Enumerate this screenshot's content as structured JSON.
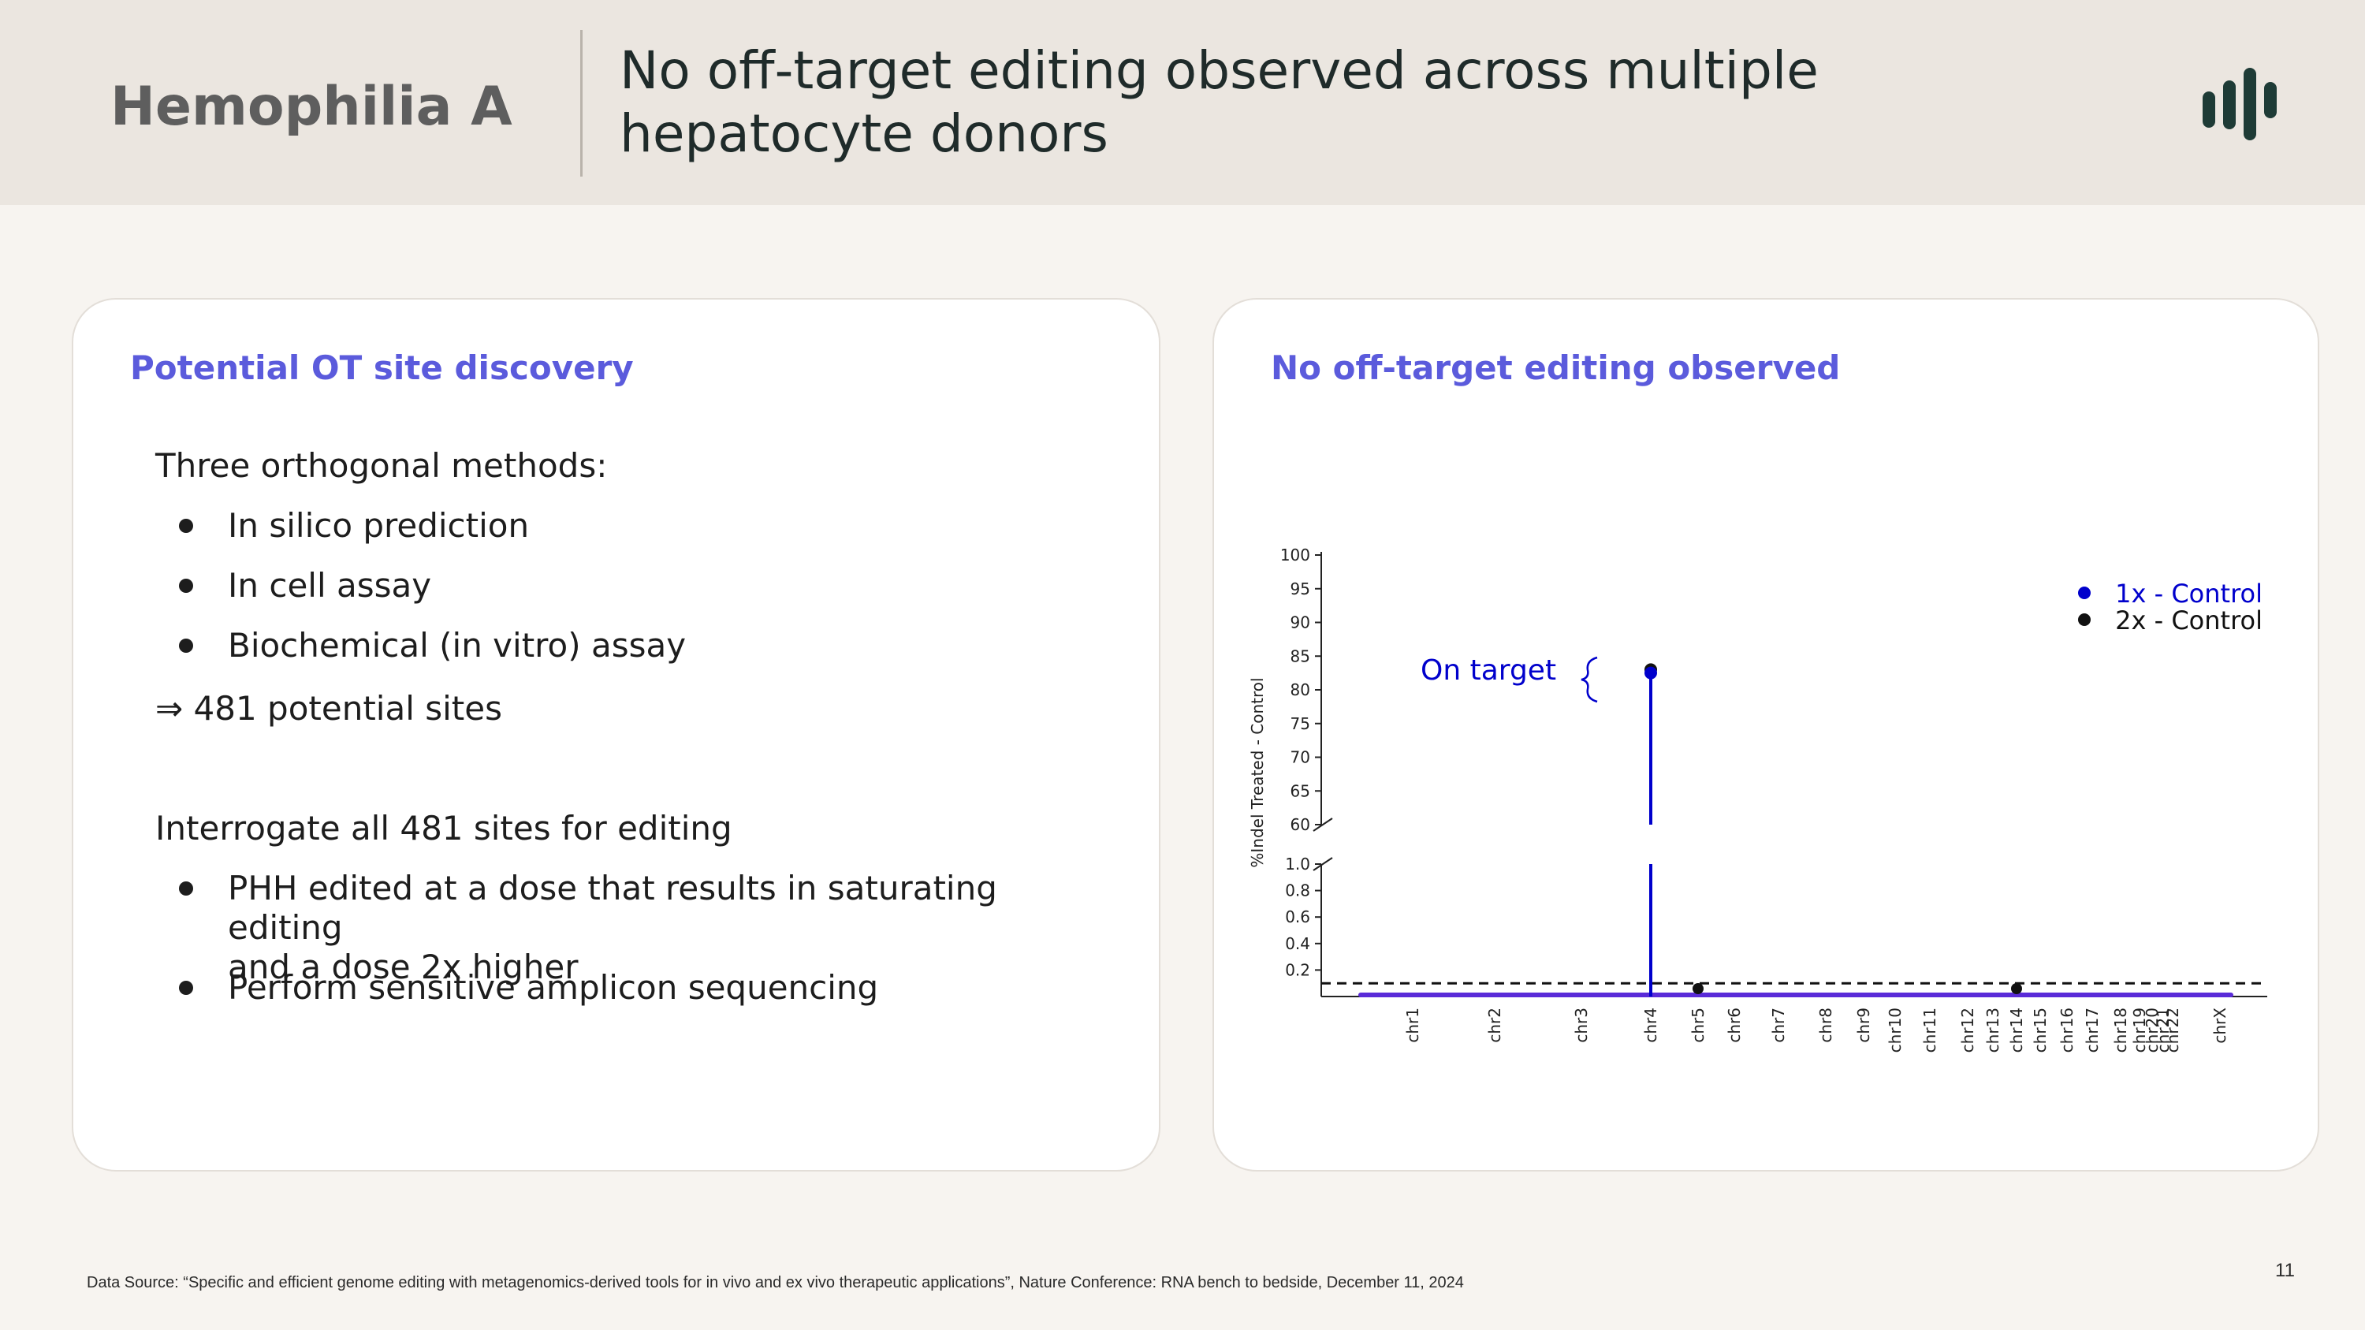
{
  "header": {
    "section_label": "Hemophilia A",
    "title_line1": "No off-target editing observed across multiple",
    "title_line2": "hepatocyte donors",
    "logo_icon": "company-bars-logo"
  },
  "left_card": {
    "title": "Potential OT site discovery",
    "intro": "Three orthogonal methods:",
    "methods": [
      "In silico prediction",
      "In cell assay",
      "Biochemical (in vitro) assay"
    ],
    "result": "⇒ 481 potential sites",
    "interrogate": "Interrogate all 481 sites for editing",
    "steps_line1": "PHH edited at a dose that results in saturating editing",
    "steps_line2": "and a dose 2x higher",
    "step2": "Perform sensitive amplicon sequencing"
  },
  "right_card": {
    "title": "No off-target editing observed"
  },
  "chart_data": {
    "type": "scatter",
    "ylabel": "%Indel Treated - Control",
    "xlabel": "",
    "y_upper_ticks": [
      60,
      65,
      70,
      75,
      80,
      85,
      90,
      95,
      100
    ],
    "y_lower_ticks": [
      0.2,
      0.4,
      0.6,
      0.8,
      1.0
    ],
    "broken_axis": true,
    "ylim_upper": [
      60,
      100
    ],
    "ylim_lower": [
      0,
      1.0
    ],
    "threshold_line": 0.1,
    "categories": [
      "chr1",
      "chr2",
      "chr3",
      "chr4",
      "chr5",
      "chr6",
      "chr7",
      "chr8",
      "chr9",
      "chr10",
      "chr11",
      "chr12",
      "chr13",
      "chr14",
      "chr15",
      "chr16",
      "chr17",
      "chr18",
      "chr19",
      "chr20",
      "chr21",
      "chr22",
      "chrX"
    ],
    "series": [
      {
        "name": "1x - Control",
        "color": "#0000cc",
        "on_target": {
          "category": "chr4",
          "value": 82.5
        }
      },
      {
        "name": "2x - Control",
        "color": "#111111",
        "on_target": {
          "category": "chr4",
          "value": 83.0
        },
        "highlights": [
          {
            "category": "chr5",
            "value": 0.05
          },
          {
            "category": "chr14",
            "value": 0.07
          }
        ]
      }
    ],
    "annotation": "On target",
    "legend_position": "top-right"
  },
  "footer": {
    "source": "Data Source: “Specific and efficient genome editing with metagenomics-derived tools for in vivo and ex vivo therapeutic applications”,  Nature Conference: RNA bench to bedside, December 11, 2024",
    "page": "11"
  },
  "colors": {
    "accent": "#5b5bdc",
    "series1": "#0000cc",
    "series2": "#111111",
    "logo": "#1e3b36"
  }
}
